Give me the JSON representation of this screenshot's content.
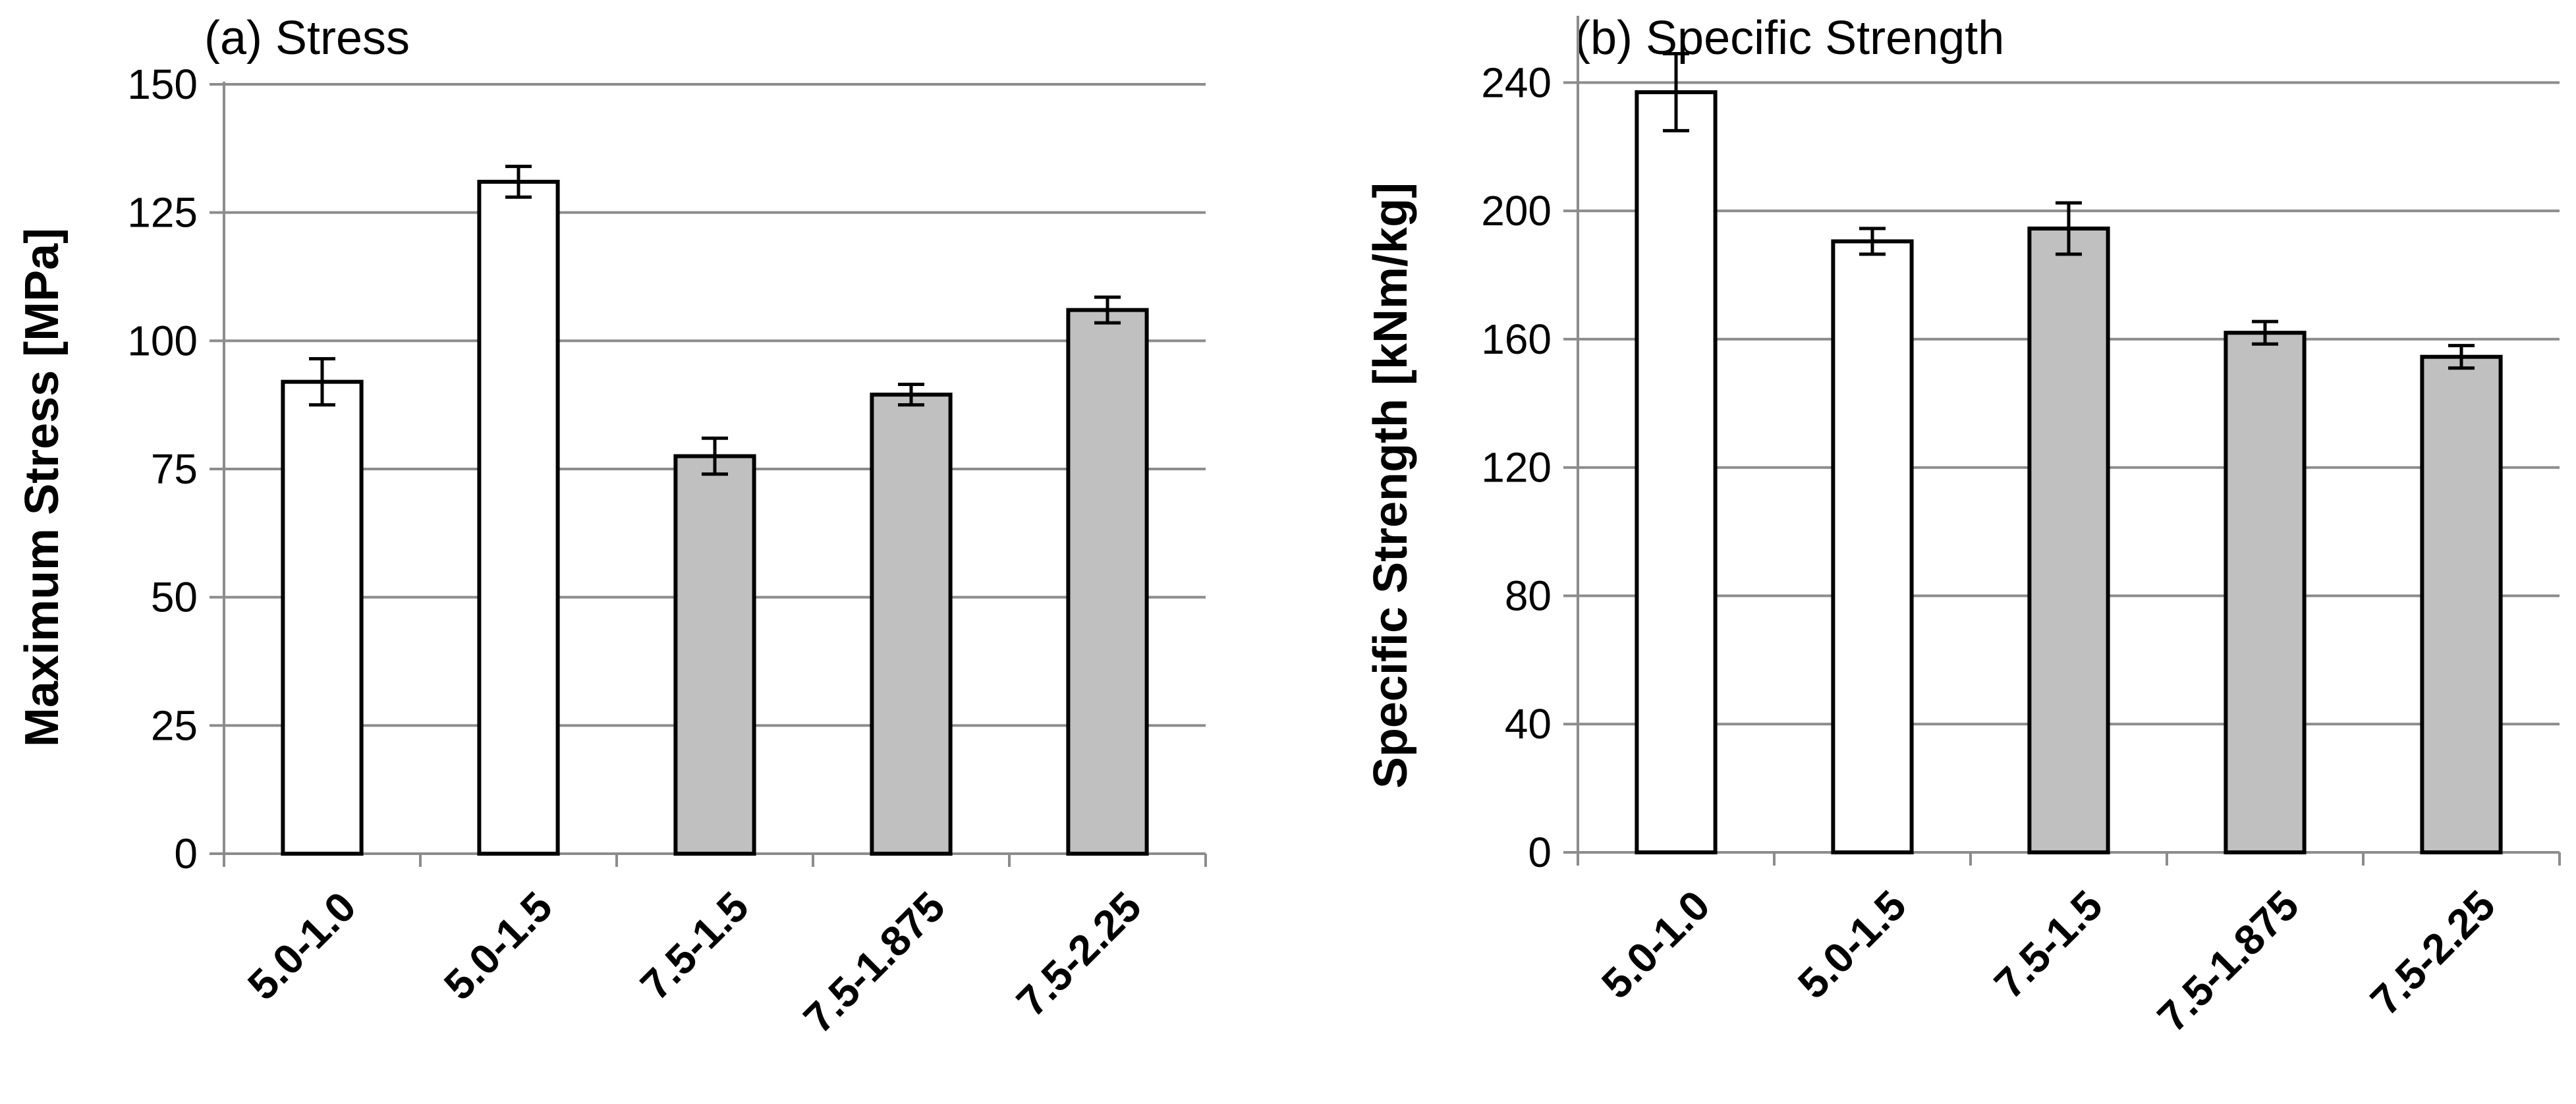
{
  "chart_data": [
    {
      "type": "bar",
      "title": "(a) Stress",
      "xlabel": "",
      "ylabel": "Maximum Stress [MPa]",
      "ylim": [
        0,
        150
      ],
      "yticks": [
        0,
        25,
        50,
        75,
        100,
        125,
        150
      ],
      "grid": true,
      "categories": [
        "5.0-1.0",
        "5.0-1.5",
        "7.5-1.5",
        "7.5-1.875",
        "7.5-2.25"
      ],
      "values": [
        92,
        131,
        77.5,
        89.5,
        106
      ],
      "errors": [
        4.5,
        3,
        3.5,
        2,
        2.5
      ],
      "bar_colors": [
        "#ffffff",
        "#ffffff",
        "#c0c0c0",
        "#c0c0c0",
        "#c0c0c0"
      ]
    },
    {
      "type": "bar",
      "title": "(b) Specific Strength",
      "xlabel": "",
      "ylabel": "Specific Strength [kNm/kg]",
      "ylim": [
        0,
        260
      ],
      "yticks": [
        0,
        40,
        80,
        120,
        160,
        200,
        240
      ],
      "grid": true,
      "categories": [
        "5.0-1.0",
        "5.0-1.5",
        "7.5-1.5",
        "7.5-1.875",
        "7.5-2.25"
      ],
      "values": [
        237,
        190.5,
        194.5,
        162,
        154.5
      ],
      "errors": [
        12,
        4,
        8,
        3.5,
        3.5
      ],
      "bar_colors": [
        "#ffffff",
        "#ffffff",
        "#c0c0c0",
        "#c0c0c0",
        "#c0c0c0"
      ]
    }
  ]
}
